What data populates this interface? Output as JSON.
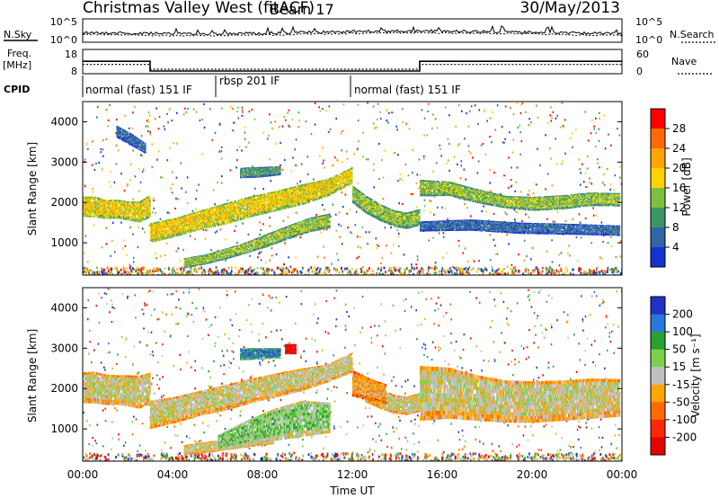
{
  "header": {
    "site": "Christmas Valley West (fitACF)",
    "beam": "Beam 17",
    "date": "30/May/2013"
  },
  "noise_panel": {
    "left_label": "N.Sky",
    "right_label": "N.Search",
    "left_ticks": [
      "10^5",
      "10^0"
    ],
    "right_ticks": [
      "10^5",
      "10^0"
    ]
  },
  "freq_panel": {
    "left_label_1": "Freq.",
    "left_label_2": "[MHz]",
    "left_ticks": [
      "18",
      "8"
    ],
    "right_label": "Nave",
    "right_ticks": [
      "60",
      "0"
    ],
    "freq_segments": [
      {
        "x": [
          0,
          3
        ],
        "value": 13.1
      },
      {
        "x": [
          3,
          15
        ],
        "value": 9.1
      },
      {
        "x": [
          15,
          24
        ],
        "value": 13.1
      }
    ],
    "nave_segments": [
      {
        "x": [
          0,
          3
        ],
        "value": 23
      },
      {
        "x": [
          3,
          15
        ],
        "value": 11
      },
      {
        "x": [
          15,
          24
        ],
        "value": 23
      }
    ]
  },
  "cpid": {
    "label": "CPID",
    "segments": [
      {
        "start": 0,
        "end": 6,
        "text": "normal (fast) 151 IF"
      },
      {
        "start": 6,
        "end": 12,
        "text": "rbsp 201 IF"
      },
      {
        "start": 12,
        "end": 24,
        "text": "normal (fast) 151 IF"
      }
    ]
  },
  "chart_data": [
    {
      "type": "heatmap",
      "name": "Power",
      "ylabel": "Slant Range [km]",
      "ylim": [
        200,
        4500
      ],
      "xlim": [
        0,
        24
      ],
      "yticks": [
        1000,
        2000,
        3000,
        4000
      ],
      "colorbar": {
        "label": "Power [dB]",
        "ticks": [
          "28",
          "24",
          "20",
          "16",
          "12",
          "8",
          "4"
        ],
        "colors": [
          "#ff0000",
          "#ff6a00",
          "#ffa500",
          "#ffd200",
          "#7fbe3c",
          "#3c9664",
          "#3264aa",
          "#1432d2"
        ]
      },
      "bands": [
        {
          "x": [
            0.0,
            3.0
          ],
          "y": [
            [
              1640,
              2140
            ],
            [
              1630,
              2150
            ],
            [
              1590,
              2060
            ],
            [
              1600,
              2070
            ],
            [
              1550,
              2030
            ],
            [
              1500,
              2020
            ],
            [
              1640,
              2200
            ]
          ],
          "level": 4
        },
        {
          "x": [
            3.0,
            12.0
          ],
          "y": [
            [
              1000,
              1490
            ],
            [
              1150,
              1620
            ],
            [
              1330,
              1810
            ],
            [
              1460,
              1990
            ],
            [
              1640,
              2160
            ],
            [
              1790,
              2290
            ],
            [
              1940,
              2450
            ],
            [
              2150,
              2580
            ],
            [
              2470,
              2880
            ]
          ],
          "level": 4
        },
        {
          "x": [
            4.5,
            11.0
          ],
          "y": [
            [
              370,
              620
            ],
            [
              460,
              710
            ],
            [
              590,
              860
            ],
            [
              740,
              1020
            ],
            [
              900,
              1230
            ],
            [
              1090,
              1430
            ],
            [
              1260,
              1620
            ],
            [
              1370,
              1730
            ]
          ],
          "level": 3
        },
        {
          "x": [
            12.0,
            15.0
          ],
          "y": [
            [
              1980,
              2410
            ],
            [
              1720,
              2160
            ],
            [
              1540,
              1960
            ],
            [
              1400,
              1810
            ],
            [
              1340,
              1750
            ],
            [
              1430,
              1840
            ]
          ],
          "level": 3
        },
        {
          "x": [
            15.0,
            23.9
          ],
          "y": [
            [
              2150,
              2560
            ],
            [
              2160,
              2520
            ],
            [
              1980,
              2330
            ],
            [
              1850,
              2160
            ],
            [
              1790,
              2140
            ],
            [
              1830,
              2180
            ],
            [
              1910,
              2250
            ],
            [
              1900,
              2230
            ]
          ],
          "level": 3
        },
        {
          "x": [
            15.0,
            23.9
          ],
          "y": [
            [
              1280,
              1530
            ],
            [
              1300,
              1580
            ],
            [
              1220,
              1500
            ],
            [
              1200,
              1470
            ],
            [
              1170,
              1430
            ]
          ],
          "level": 1
        },
        {
          "x": [
            7.0,
            8.8
          ],
          "y": [
            [
              2600,
              2860
            ],
            [
              2620,
              2880
            ],
            [
              2680,
              2900
            ]
          ],
          "level": 2
        },
        {
          "x": [
            1.5,
            2.8
          ],
          "y": [
            [
              3600,
              3900
            ],
            [
              3400,
              3700
            ],
            [
              3200,
              3450
            ]
          ],
          "level": 1
        }
      ]
    },
    {
      "type": "heatmap",
      "name": "Velocity",
      "ylabel": "Slant Range [km]",
      "xlabel": "Time UT",
      "ylim": [
        200,
        4500
      ],
      "xlim": [
        0,
        24
      ],
      "yticks": [
        1000,
        2000,
        3000,
        4000
      ],
      "xticks": [
        "00:00",
        "04:00",
        "08:00",
        "12:00",
        "16:00",
        "20:00",
        "00:00"
      ],
      "colorbar": {
        "label": "Velocity [m s⁻¹]",
        "ticks": [
          "200",
          "100",
          "50",
          "15",
          "-15",
          "-50",
          "-100",
          "-200"
        ],
        "colors": [
          "#1e32c8",
          "#2878dc",
          "#28a032",
          "#7cd24c",
          "#c0c0c0",
          "#ffa500",
          "#ff6a00",
          "#ff2800",
          "#e60000"
        ]
      },
      "bands": [
        {
          "x": [
            0.0,
            3.0
          ],
          "y": [
            [
              1640,
              2400
            ],
            [
              1630,
              2420
            ],
            [
              1590,
              2350
            ],
            [
              1600,
              2330
            ],
            [
              1550,
              2330
            ],
            [
              1500,
              2320
            ],
            [
              1640,
              2400
            ]
          ],
          "level": 4
        },
        {
          "x": [
            3.0,
            12.0
          ],
          "y": [
            [
              1000,
              1700
            ],
            [
              1150,
              1800
            ],
            [
              1330,
              1950
            ],
            [
              1460,
              2100
            ],
            [
              1640,
              2250
            ],
            [
              1790,
              2380
            ],
            [
              1940,
              2500
            ],
            [
              2150,
              2600
            ],
            [
              2400,
              2900
            ]
          ],
          "level": 4
        },
        {
          "x": [
            4.5,
            8.5
          ],
          "y": [
            [
              350,
              600
            ],
            [
              400,
              680
            ],
            [
              480,
              760
            ],
            [
              560,
              820
            ],
            [
              620,
              900
            ]
          ],
          "level": 4
        },
        {
          "x": [
            6.0,
            11.0
          ],
          "y": [
            [
              450,
              850
            ],
            [
              560,
              1200
            ],
            [
              700,
              1500
            ],
            [
              800,
              1700
            ],
            [
              900,
              1650
            ]
          ],
          "level": 5
        },
        {
          "x": [
            12.0,
            15.0
          ],
          "y": [
            [
              1900,
              2450
            ],
            [
              1650,
              2200
            ],
            [
              1500,
              2000
            ],
            [
              1380,
              1850
            ],
            [
              1340,
              1800
            ],
            [
              1430,
              1900
            ]
          ],
          "level": 4
        },
        {
          "x": [
            12.0,
            13.5
          ],
          "y": [
            [
              1800,
              2450
            ],
            [
              1700,
              2250
            ],
            [
              1600,
              2100
            ]
          ],
          "level": 3
        },
        {
          "x": [
            15.0,
            23.9
          ],
          "y": [
            [
              1200,
              2560
            ],
            [
              1250,
              2520
            ],
            [
              1200,
              2330
            ],
            [
              1150,
              2200
            ],
            [
              1150,
              2180
            ],
            [
              1200,
              2200
            ],
            [
              1250,
              2250
            ],
            [
              1300,
              2230
            ]
          ],
          "level": 4
        },
        {
          "x": [
            7.0,
            8.8
          ],
          "y": [
            [
              2700,
              3000
            ],
            [
              2720,
              3000
            ],
            [
              2750,
              3000
            ]
          ],
          "level": 7
        },
        {
          "x": [
            9.0,
            9.5
          ],
          "y": [
            [
              2850,
              3100
            ],
            [
              2850,
              3100
            ]
          ],
          "level": 0
        }
      ]
    }
  ]
}
